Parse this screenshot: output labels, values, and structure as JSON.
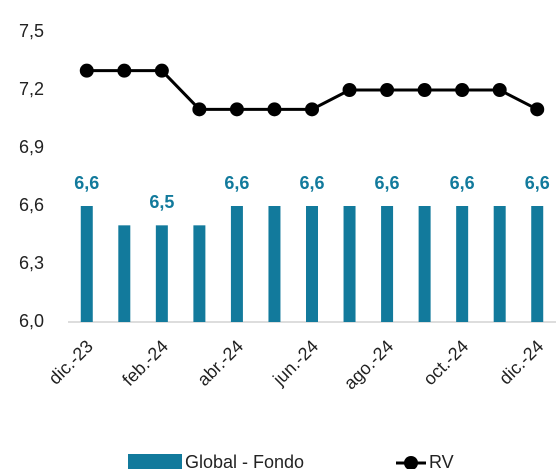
{
  "chart_data": {
    "type": "bar-line",
    "categories": [
      "dic.-23",
      null,
      "feb.-24",
      null,
      "abr.-24",
      null,
      "jun.-24",
      null,
      "ago.-24",
      null,
      "oct.-24",
      null,
      "dic.-24"
    ],
    "series": [
      {
        "name": "Global - Fondo",
        "type": "bar",
        "color": "#127a9c",
        "values": [
          6.6,
          6.5,
          6.5,
          6.5,
          6.6,
          6.6,
          6.6,
          6.6,
          6.6,
          6.6,
          6.6,
          6.6,
          6.6
        ],
        "value_labels": [
          "6,6",
          null,
          "6,5",
          null,
          "6,6",
          null,
          "6,6",
          null,
          "6,6",
          null,
          "6,6",
          null,
          "6,6"
        ]
      },
      {
        "name": "RV",
        "type": "line",
        "color": "#000000",
        "values": [
          7.3,
          7.3,
          7.3,
          7.1,
          7.1,
          7.1,
          7.1,
          7.2,
          7.2,
          7.2,
          7.2,
          7.2,
          7.1
        ]
      }
    ],
    "ylim": [
      6.0,
      7.5
    ],
    "yticks": [
      {
        "value": 6.0,
        "label": "6,0"
      },
      {
        "value": 6.3,
        "label": "6,3"
      },
      {
        "value": 6.6,
        "label": "6,6"
      },
      {
        "value": 6.9,
        "label": "6,9"
      },
      {
        "value": 7.2,
        "label": "7,2"
      },
      {
        "value": 7.5,
        "label": "7,5"
      }
    ],
    "grid": false,
    "legend": "bottom"
  }
}
